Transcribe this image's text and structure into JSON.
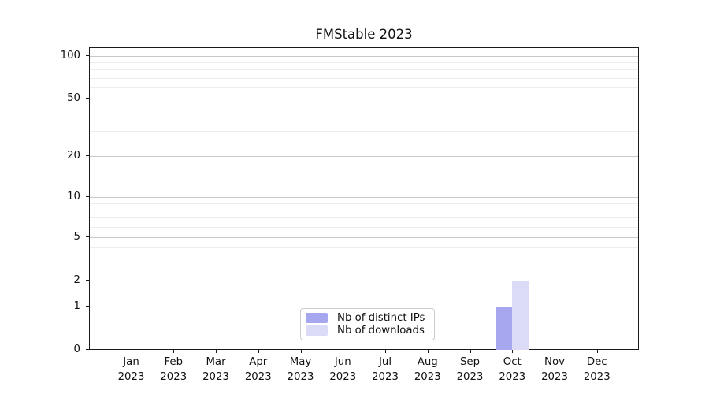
{
  "chart_data": {
    "type": "bar",
    "title": "FMStable 2023",
    "year": "2023",
    "months": [
      "Jan",
      "Feb",
      "Mar",
      "Apr",
      "May",
      "Jun",
      "Jul",
      "Aug",
      "Sep",
      "Oct",
      "Nov",
      "Dec"
    ],
    "series": [
      {
        "name": "Nb of distinct IPs",
        "color": "#a7a7f0",
        "values": [
          0,
          0,
          0,
          0,
          0,
          0,
          0,
          0,
          0,
          1,
          0,
          0
        ]
      },
      {
        "name": "Nb of downloads",
        "color": "#dbdbf8",
        "values": [
          0,
          0,
          0,
          0,
          0,
          0,
          0,
          0,
          0,
          2,
          0,
          0
        ]
      }
    ],
    "y_axis": {
      "scale": "symlog",
      "ticks": [
        0,
        1,
        2,
        5,
        10,
        20,
        50,
        100
      ],
      "minor_ticks": [
        3,
        4,
        6,
        7,
        8,
        9,
        30,
        40,
        60,
        70,
        80,
        90
      ],
      "ylim": [
        0,
        130
      ]
    },
    "grid": true,
    "legend": {
      "position": "bottom-center"
    }
  }
}
